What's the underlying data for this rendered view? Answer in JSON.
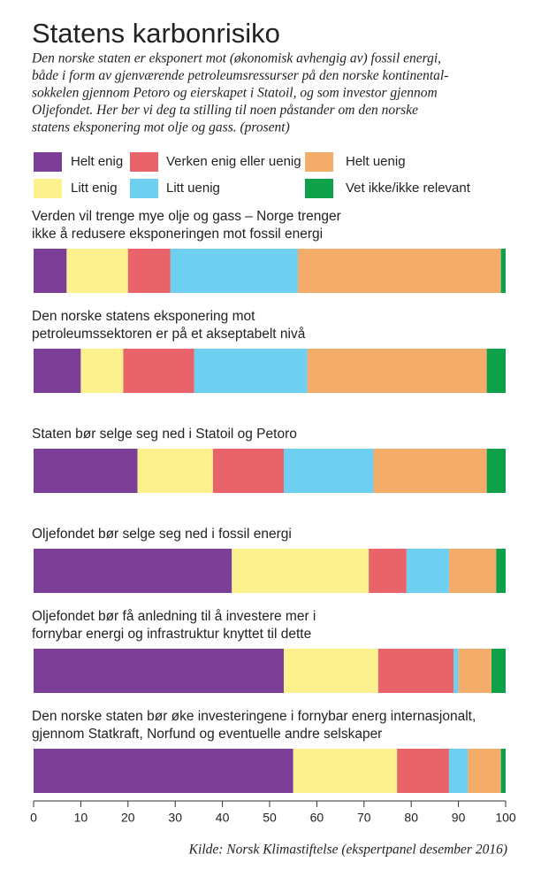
{
  "chart_data": {
    "type": "stacked_bar_horizontal",
    "title": "Statens karbonrisiko",
    "subtitle": [
      "Den norske staten er eksponert mot (økonomisk avhengig av) fossil energi,",
      "både i form av gjenværende petroleumsressurser på den norske kontinental-",
      "sokkelen gjennom Petoro og eierskapet i Statoil, og som investor gjennom",
      "Oljefondet. Her ber vi deg ta stilling til noen påstander om den norske",
      "statens eksponering mot olje og gass. (prosent)"
    ],
    "categories": [
      [
        "Verden vil trenge mye olje og gass – Norge trenger",
        "ikke å redusere eksponeringen mot fossil energi"
      ],
      [
        "Den norske statens eksponering mot",
        "petroleumssektoren er på et akseptabelt nivå"
      ],
      [
        "Staten bør selge seg ned i Statoil og Petoro"
      ],
      [
        "Oljefondet bør selge seg ned i fossil energi"
      ],
      [
        "Oljefondet bør få anledning til å investere mer i",
        "fornybar energi og infrastruktur knyttet til dette"
      ],
      [
        "Den norske staten bør øke investeringene i fornybar energ internasjonalt,",
        "gjennom Statkraft, Norfund og eventuelle andre selskaper"
      ]
    ],
    "series": [
      {
        "name": "Helt enig",
        "color": "#7b3f98",
        "values": [
          7,
          10,
          22,
          42,
          53,
          55
        ]
      },
      {
        "name": "Litt enig",
        "color": "#fbf18f",
        "values": [
          13,
          9,
          16,
          29,
          20,
          22
        ]
      },
      {
        "name": "Verken enig eller uenig",
        "color": "#e8646a",
        "values": [
          9,
          15,
          15,
          8,
          16,
          11
        ]
      },
      {
        "name": "Litt uenig",
        "color": "#6ecff0",
        "values": [
          27,
          24,
          19,
          9,
          1,
          4
        ]
      },
      {
        "name": "Helt uenig",
        "color": "#f4ac6a",
        "values": [
          43,
          38,
          24,
          10,
          7,
          7
        ]
      },
      {
        "name": "Vet ikke/ikke relevant",
        "color": "#0fa04a",
        "values": [
          1,
          4,
          4,
          2,
          3,
          1
        ]
      }
    ],
    "xlim": [
      0,
      100
    ],
    "xticks": [
      0,
      10,
      20,
      30,
      40,
      50,
      60,
      70,
      80,
      90,
      100
    ],
    "source": "Kilde: Norsk Klimastiftelse (ekspertpanel desember 2016)"
  }
}
